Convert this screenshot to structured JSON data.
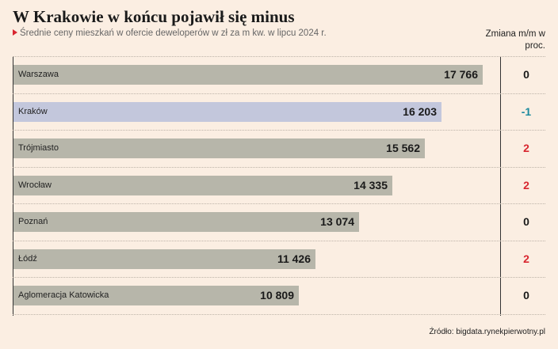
{
  "title": "W Krakowie w końcu pojawił się minus",
  "subtitle": "Średnie ceny mieszkań w ofercie deweloperów w zł za m kw. w lipcu 2024 r.",
  "change_header": "Zmiana m/m w proc.",
  "source": "Źródło: bigdata.rynekpierwotny.pl",
  "colors": {
    "background": "#fbeee2",
    "bar": "#b7b6aa",
    "bar_highlight": "#c3c7dc",
    "positive": "#d8262f",
    "negative": "#1b8a9e",
    "neutral": "#1a1a1a",
    "marker": "#d8262f"
  },
  "chart_data": {
    "type": "bar",
    "orientation": "horizontal",
    "title": "W Krakowie w końcu pojawił się minus",
    "subtitle": "Średnie ceny mieszkań w ofercie deweloperów w zł za m kw. w lipcu 2024 r.",
    "xlim": [
      0,
      18000
    ],
    "grid": false,
    "categories": [
      "Warszawa",
      "Kraków",
      "Trójmiasto",
      "Wrocław",
      "Poznań",
      "Łódź",
      "Aglomeracja Katowicka"
    ],
    "values": [
      17766,
      16203,
      15562,
      14335,
      13074,
      11426,
      10809
    ],
    "value_labels": [
      "17 766",
      "16 203",
      "15 562",
      "14 335",
      "13 074",
      "11 426",
      "10 809"
    ],
    "highlight": "Kraków",
    "change_mm_pct": {
      "label": "Zmiana m/m w proc.",
      "values": [
        0,
        -1,
        2,
        2,
        0,
        2,
        0
      ],
      "labels": [
        "0",
        "-1",
        "2",
        "2",
        "0",
        "2",
        "0"
      ]
    }
  }
}
